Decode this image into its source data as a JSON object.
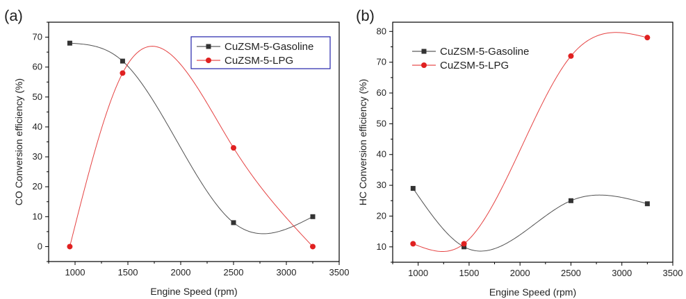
{
  "chart_data": [
    {
      "panel_label": "(a)",
      "type": "line",
      "title": "",
      "xlabel": "Engine Speed (rpm)",
      "ylabel": "CO Conversion efficiency (%)",
      "xlim": [
        750,
        3500
      ],
      "ylim": [
        -5,
        75
      ],
      "xticks": [
        1000,
        1500,
        2000,
        2500,
        3000,
        3500
      ],
      "yticks": [
        0,
        10,
        20,
        30,
        40,
        50,
        60,
        70
      ],
      "grid": false,
      "legend_position": "top-right",
      "smooth": true,
      "x": [
        950,
        1450,
        2500,
        3250
      ],
      "series": [
        {
          "name": "CuZSM-5-Gasoline",
          "values": [
            68,
            62,
            8,
            10
          ],
          "color": "#333333",
          "marker": "square"
        },
        {
          "name": "CuZSM-5-LPG",
          "values": [
            0,
            58,
            33,
            0
          ],
          "color": "#e02020",
          "marker": "circle"
        }
      ]
    },
    {
      "panel_label": "(b)",
      "type": "line",
      "title": "",
      "xlabel": "Engine Speed (rpm)",
      "ylabel": "HC Conversion efficiency (%)",
      "xlim": [
        750,
        3500
      ],
      "ylim": [
        5,
        83
      ],
      "xticks": [
        1000,
        1500,
        2000,
        2500,
        3000,
        3500
      ],
      "yticks": [
        10,
        20,
        30,
        40,
        50,
        60,
        70,
        80
      ],
      "grid": false,
      "legend_position": "top-left",
      "smooth": true,
      "x": [
        950,
        1450,
        2500,
        3250
      ],
      "series": [
        {
          "name": "CuZSM-5-Gasoline",
          "values": [
            29,
            10,
            25,
            24
          ],
          "color": "#333333",
          "marker": "square"
        },
        {
          "name": "CuZSM-5-LPG",
          "values": [
            11,
            11,
            72,
            78
          ],
          "color": "#e02020",
          "marker": "circle"
        }
      ]
    }
  ]
}
